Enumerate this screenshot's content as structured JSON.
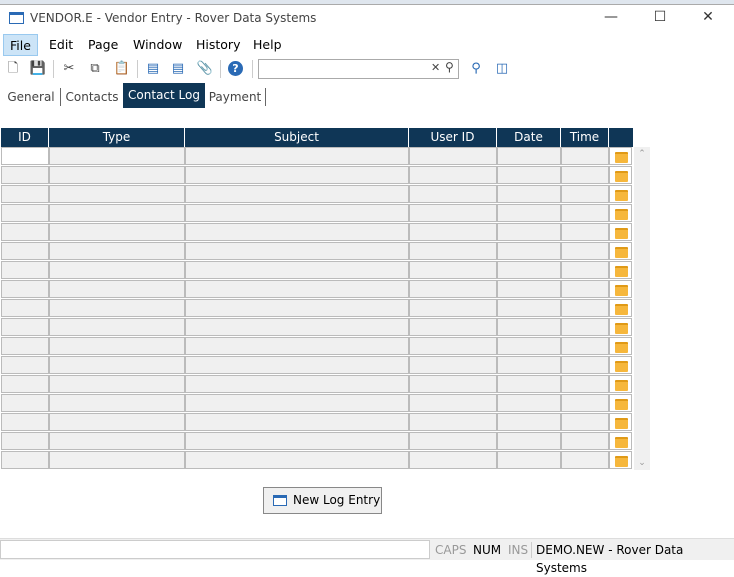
{
  "window": {
    "title": "VENDOR.E - Vendor Entry - Rover Data Systems"
  },
  "menu": [
    "File",
    "Edit",
    "Page",
    "Window",
    "History",
    "Help"
  ],
  "toolbar": {
    "search_value": "",
    "search_placeholder": ""
  },
  "tabs": [
    "General",
    "Contacts",
    "Contact Log",
    "Payment"
  ],
  "active_tab": "Contact Log",
  "grid": {
    "columns": [
      "ID",
      "Type",
      "Subject",
      "User ID",
      "Date",
      "Time"
    ],
    "row_count": 17
  },
  "new_button": "New Log Entry",
  "status": {
    "caps": "CAPS",
    "num": "NUM",
    "ins": "INS",
    "info": "DEMO.NEW - Rover Data Systems"
  },
  "colors": {
    "header": "#0f3656",
    "folder": "#f6b73c"
  }
}
